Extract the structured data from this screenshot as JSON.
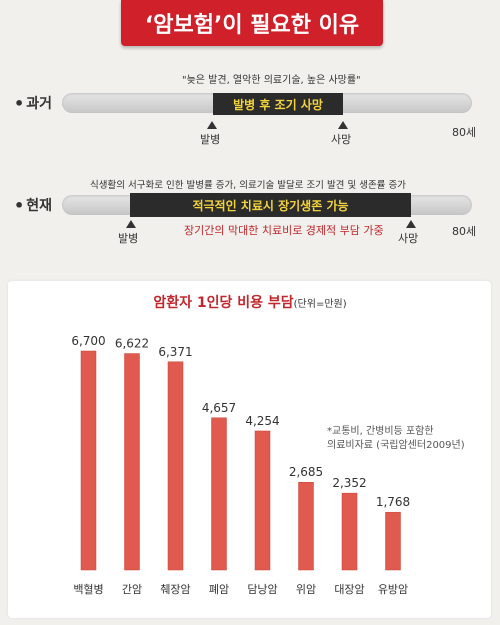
{
  "title": "‘암보험’이 필요한 이유",
  "past": {
    "label": "과거",
    "caption": "\"늦은 발견, 열악한 의료기술, 높은 사망률\"",
    "bar_text": "발병 후 조기 사망",
    "marker1": "발병",
    "marker2": "사망",
    "end": "80세"
  },
  "present": {
    "label": "현재",
    "caption": "식생활의 서구화로 인한 발병률 증가, 의료기술 발달로 조기 발견 및 생존률 증가",
    "bar_text": "적극적인 치료시 장기생존 가능",
    "marker1": "발병",
    "marker2": "사망",
    "end": "80세",
    "note": "장기간의 막대한 치료비로 경제적 부담 가중"
  },
  "footnote": [
    "*교통비, 간병비등 포함한",
    "의료비자료 (국립암센터2009년)"
  ],
  "colors": {
    "bar": "#e05a4f",
    "bar_edge": "#c84436",
    "accent": "#d0202a"
  },
  "chart_data": {
    "type": "bar",
    "title": "암환자 1인당 비용 부담",
    "unit": "(단위=만원)",
    "categories": [
      "백혈병",
      "간암",
      "췌장암",
      "폐암",
      "담낭암",
      "위암",
      "대장암",
      "유방암"
    ],
    "values": [
      6700,
      6622,
      6371,
      4657,
      4254,
      2685,
      2352,
      1768
    ],
    "value_labels": [
      "6,700",
      "6,622",
      "6,371",
      "4,657",
      "4,254",
      "2,685",
      "2,352",
      "1,768"
    ],
    "ylim": [
      0,
      7500
    ],
    "grid": false
  }
}
